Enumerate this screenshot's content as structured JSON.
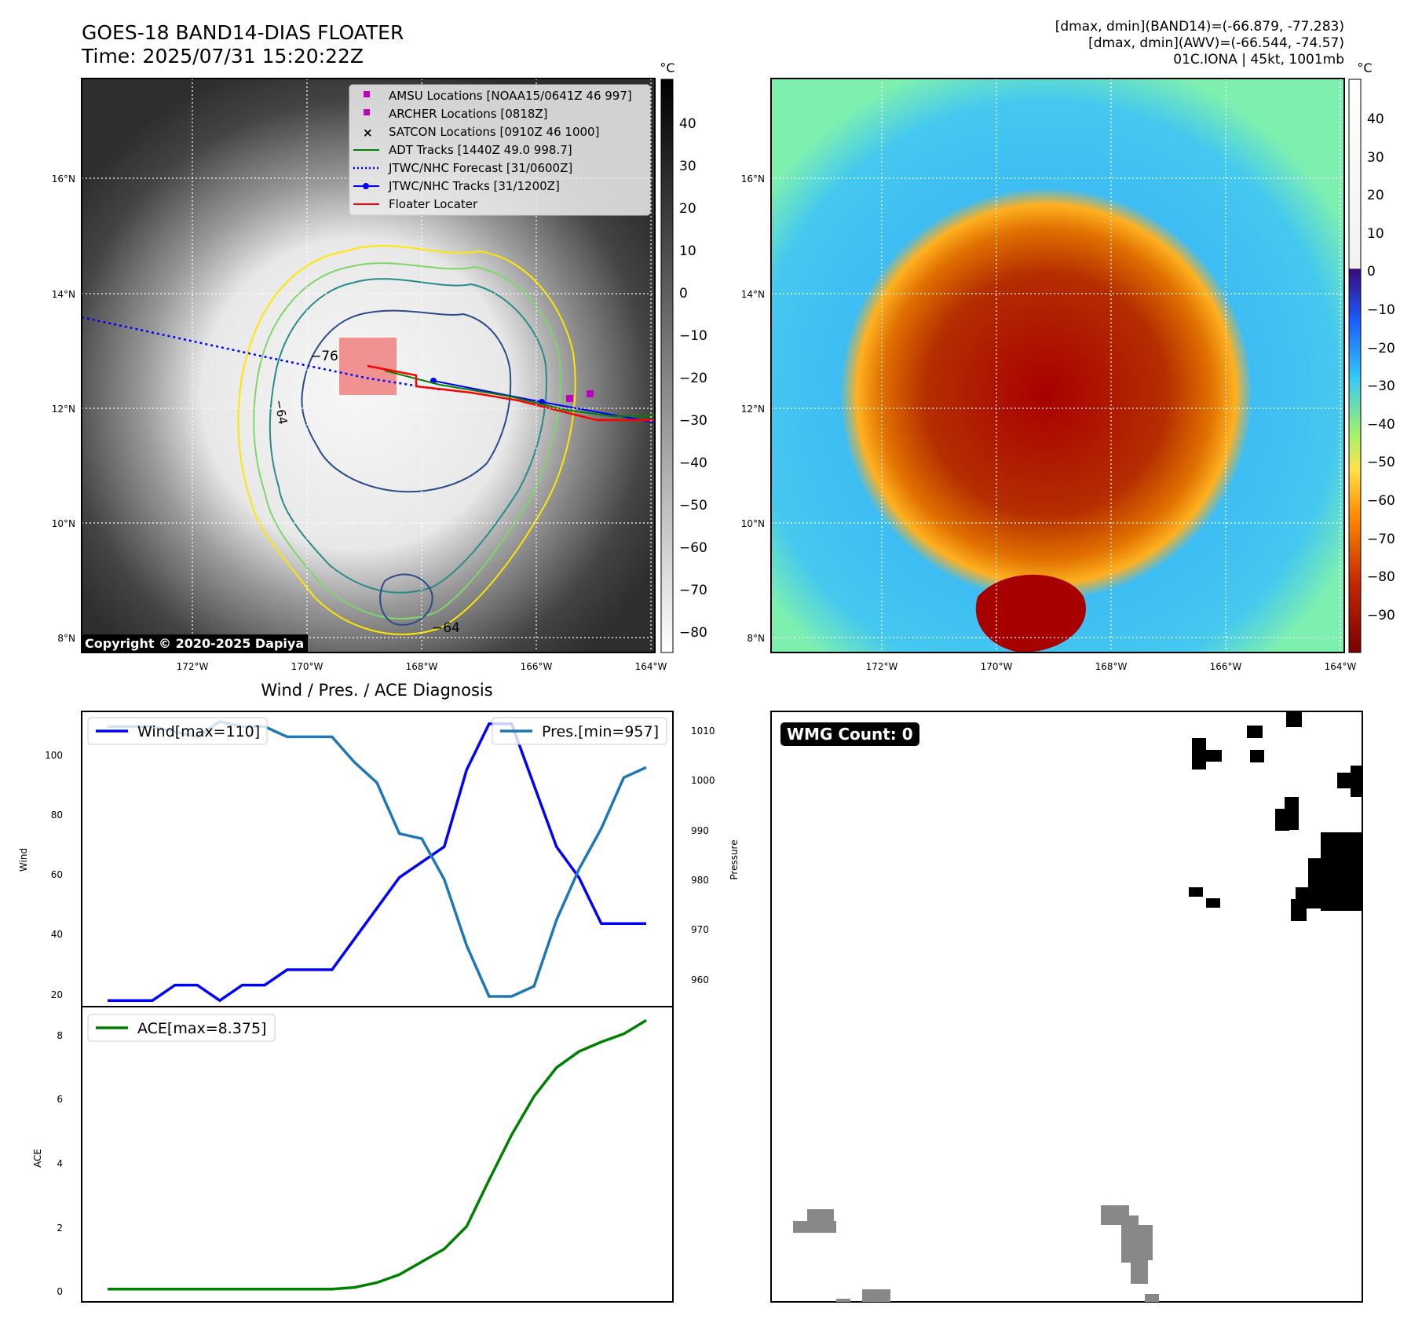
{
  "header": {
    "title_line1": "GOES-18 BAND14-DIAS FLOATER",
    "title_line2": "Time: 2025/07/31 15:20:22Z",
    "info_line1": "[dmax, dmin](BAND14)=(-66.879, -77.283)",
    "info_line2": "[dmax, dmin](AWV)=(-66.544, -74.57)",
    "info_line3": "01C.IONA | 45kt, 1001mb"
  },
  "maps": {
    "lat_labels": [
      "16°N",
      "14°N",
      "12°N",
      "10°N",
      "8°N"
    ],
    "lon_labels": [
      "172°W",
      "170°W",
      "168°W",
      "166°W",
      "164°W"
    ],
    "ir_colorbar": {
      "unit": "°C",
      "ticks": [
        "40",
        "30",
        "20",
        "10",
        "0",
        "−10",
        "−20",
        "−30",
        "−40",
        "−50",
        "−60",
        "−70",
        "−80"
      ]
    },
    "awv_colorbar": {
      "unit": "°C",
      "ticks": [
        "40",
        "30",
        "20",
        "10",
        "0",
        "−10",
        "−20",
        "−30",
        "−40",
        "−50",
        "−60",
        "−70",
        "−80",
        "−90"
      ]
    },
    "contour_labels": [
      "−76",
      "−64",
      "−64",
      "−64"
    ],
    "legend": [
      {
        "label": "AMSU Locations [NOAA15/0641Z 46 997]",
        "marker": "square",
        "color": "#bf00bf"
      },
      {
        "label": "ARCHER Locations [0818Z]",
        "marker": "square",
        "color": "#bf00bf"
      },
      {
        "label": "SATCON Locations [0910Z 46 1000]",
        "marker": "x",
        "color": "#17becf"
      },
      {
        "label": "ADT Tracks [1440Z 49.0 998.7]",
        "marker": "line",
        "color": "#008000"
      },
      {
        "label": "JTWC/NHC Forecast [31/0600Z]",
        "marker": "dotted",
        "color": "#0000ff"
      },
      {
        "label": "JTWC/NHC Tracks [31/1200Z]",
        "marker": "line-dot",
        "color": "#0000ff"
      },
      {
        "label": "Floater Locater",
        "marker": "line",
        "color": "#ff0000"
      }
    ],
    "copyright": "Copyright © 2020-2025 Dapiya"
  },
  "diagnosis": {
    "title": "Wind / Pres. / ACE Diagnosis",
    "wind_axis_label": "Wind",
    "pressure_axis_label": "Pressure",
    "ace_axis_label": "ACE",
    "wind_ticks": [
      "100",
      "80",
      "60",
      "40",
      "20"
    ],
    "pressure_ticks": [
      "1010",
      "1000",
      "990",
      "980",
      "970",
      "960"
    ],
    "ace_ticks": [
      "8",
      "6",
      "4",
      "2",
      "0"
    ],
    "wind_legend": "Wind[max=110]",
    "pres_legend": "Pres.[min=957]",
    "ace_legend": "ACE[max=8.375]"
  },
  "chart_data": [
    {
      "type": "line",
      "series": [
        {
          "name": "Wind[max=110]",
          "color": "#0000ff",
          "axis": "left",
          "values": [
            20,
            20,
            20,
            25,
            25,
            20,
            25,
            25,
            30,
            30,
            30,
            40,
            50,
            60,
            65,
            70,
            95,
            110,
            110,
            90,
            70,
            60,
            45,
            45,
            45
          ]
        },
        {
          "name": "Pres.[min=957]",
          "color": "#1f77b4",
          "axis": "right",
          "values": [
            1010,
            1010,
            1010,
            1009,
            1008,
            1011,
            1010,
            1010,
            1008,
            1008,
            1008,
            1003,
            999,
            989,
            988,
            980,
            967,
            957,
            957,
            959,
            972,
            982,
            990,
            1000,
            1002
          ]
        }
      ],
      "ylim_left": [
        18,
        114
      ],
      "ylim_right": [
        955,
        1013
      ]
    },
    {
      "type": "line",
      "series": [
        {
          "name": "ACE[max=8.375]",
          "color": "#008000",
          "values": [
            0,
            0,
            0,
            0,
            0,
            0,
            0,
            0,
            0,
            0,
            0,
            0.05,
            0.2,
            0.45,
            0.85,
            1.25,
            1.95,
            3.4,
            4.8,
            6.0,
            6.9,
            7.4,
            7.7,
            7.95,
            8.375
          ]
        }
      ],
      "ylim": [
        -0.4,
        8.8
      ]
    }
  ],
  "wmg": {
    "label": "WMG Count: 0"
  }
}
